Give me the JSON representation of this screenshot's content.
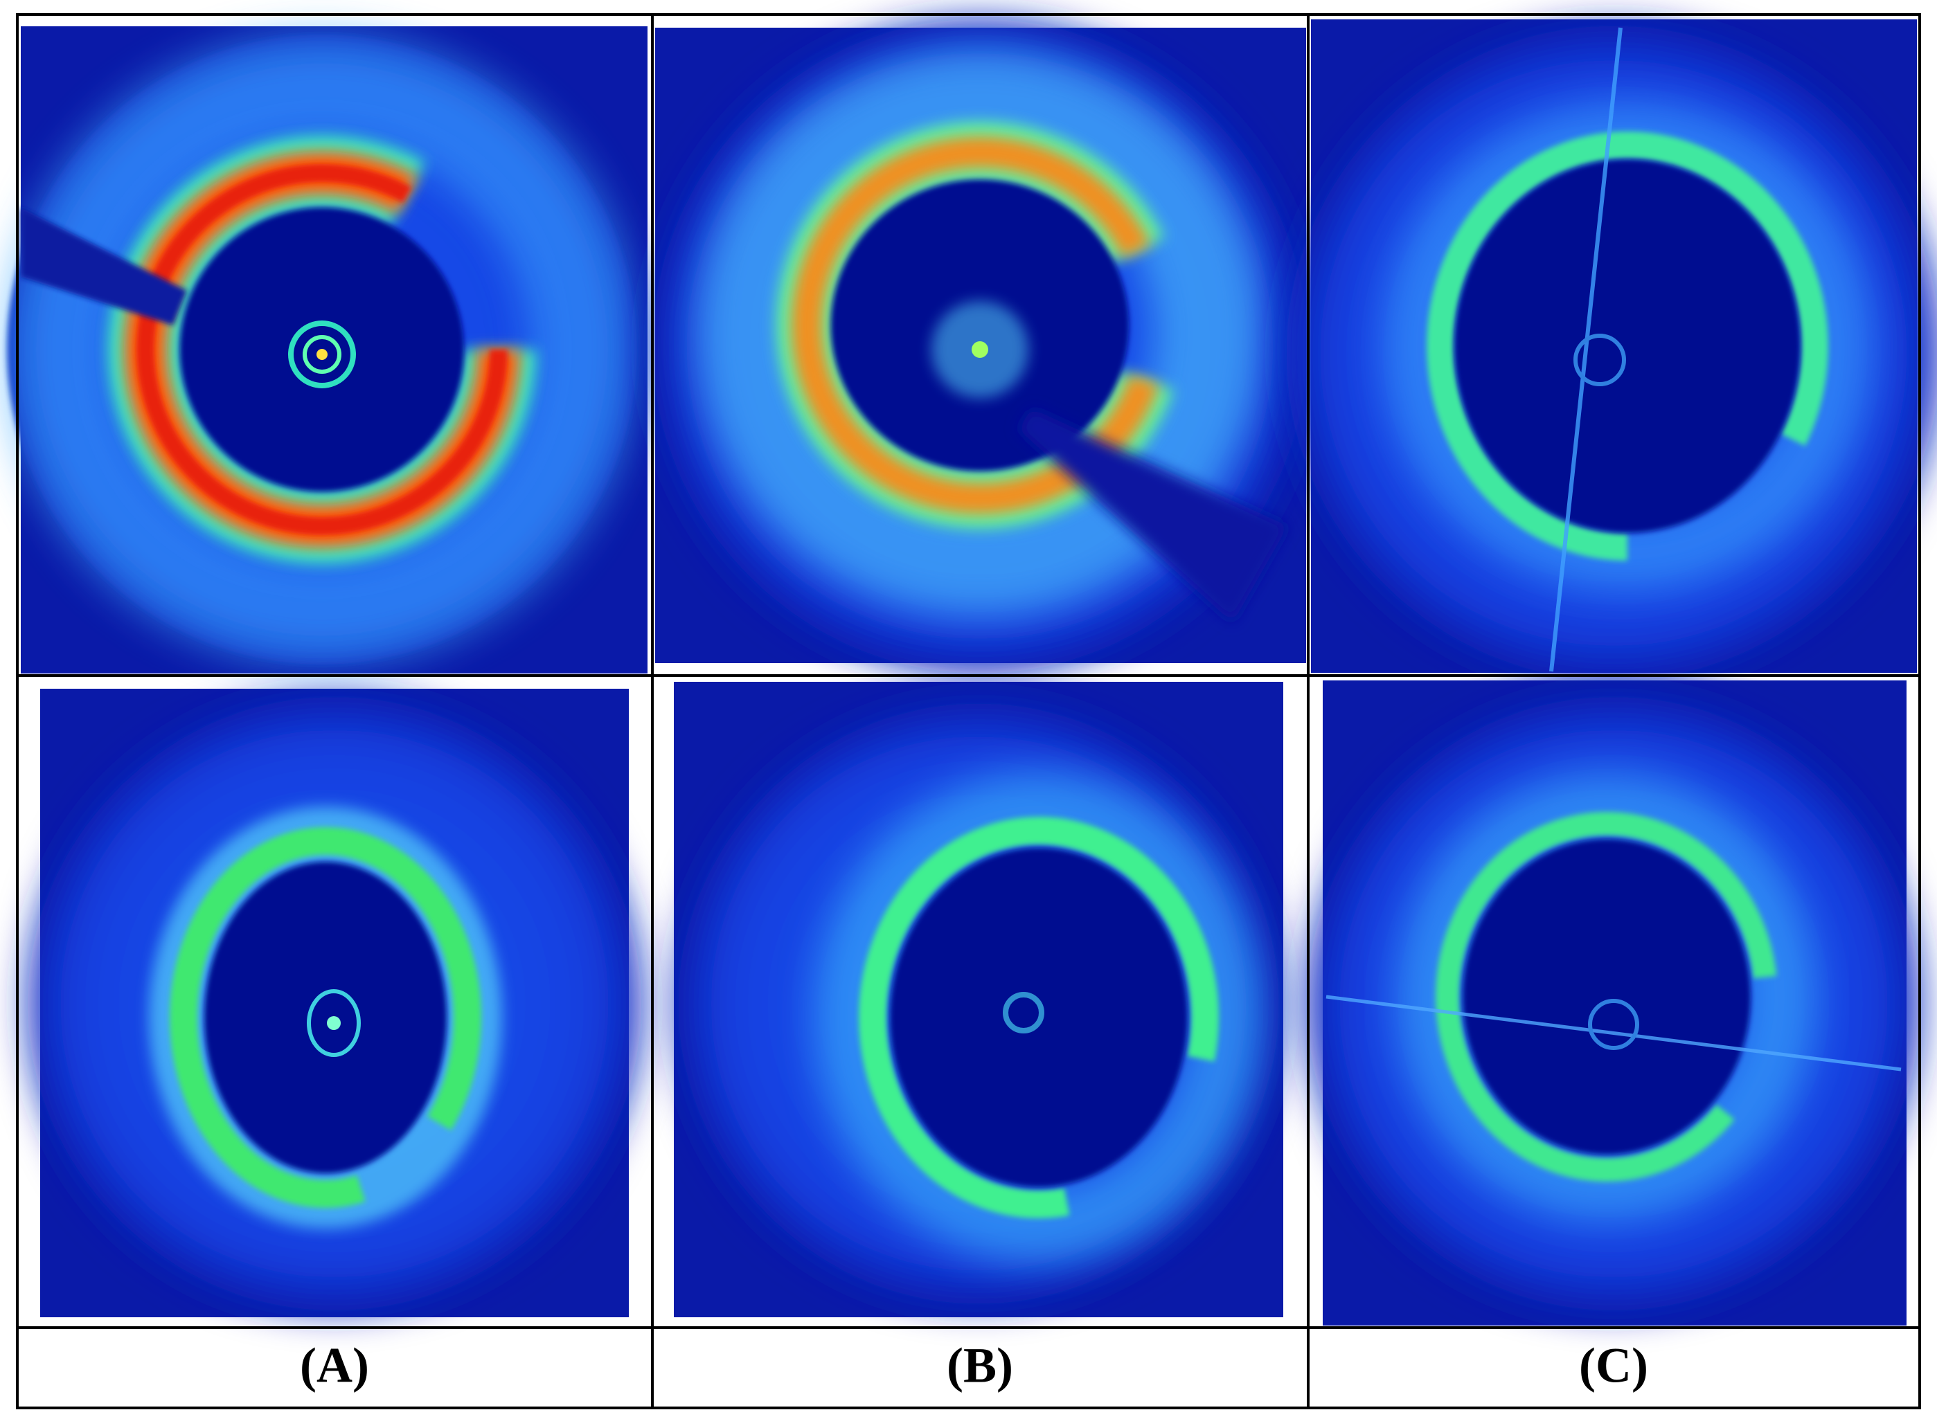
{
  "panels": {
    "labels": [
      "(A)",
      "(B)",
      "(C)"
    ]
  }
}
